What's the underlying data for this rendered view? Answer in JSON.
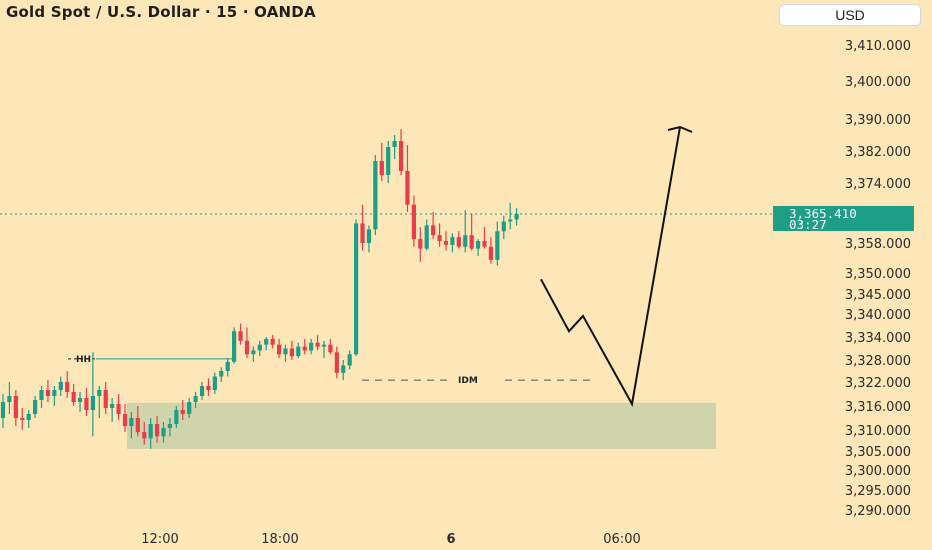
{
  "header": {
    "title": "Gold Spot / U.S. Dollar · 15 · OANDA",
    "currency_button": "USD"
  },
  "chart_data": {
    "type": "candlestick",
    "title": "Gold Spot / U.S. Dollar · 15 · OANDA",
    "y_ticks": [
      "3,410.000",
      "3,400.000",
      "3,390.000",
      "3,382.000",
      "3,374.000",
      "3,365.410",
      "3,358.000",
      "3,350.000",
      "3,345.000",
      "3,340.000",
      "3,334.000",
      "3,328.000",
      "3,322.000",
      "3,316.000",
      "3,310.000",
      "3,305.000",
      "3,300.000",
      "3,295.000",
      "3,290.000"
    ],
    "x_ticks": [
      "12:00",
      "18:00",
      "6",
      "06:00"
    ],
    "current_price": {
      "value": 3365.41,
      "label": "3,365.410",
      "countdown": "03:27"
    },
    "annotations": {
      "hh": "HH",
      "idm": "IDM"
    },
    "ohlc": [
      [
        3313.0,
        3319.0,
        3310.5,
        3317.0
      ],
      [
        3317.0,
        3322.0,
        3314.0,
        3318.5
      ],
      [
        3318.5,
        3320.0,
        3311.0,
        3313.0
      ],
      [
        3313.0,
        3315.5,
        3310.0,
        3312.5
      ],
      [
        3312.5,
        3315.0,
        3310.5,
        3314.0
      ],
      [
        3314.0,
        3318.5,
        3313.0,
        3317.5
      ],
      [
        3317.5,
        3321.0,
        3315.5,
        3320.0
      ],
      [
        3320.0,
        3322.5,
        3317.0,
        3318.5
      ],
      [
        3318.5,
        3321.0,
        3316.0,
        3320.0
      ],
      [
        3320.0,
        3323.5,
        3318.5,
        3322.0
      ],
      [
        3322.0,
        3325.0,
        3318.0,
        3319.5
      ],
      [
        3319.5,
        3321.5,
        3316.0,
        3317.0
      ],
      [
        3317.0,
        3319.5,
        3314.5,
        3318.0
      ],
      [
        3318.0,
        3320.5,
        3313.5,
        3315.0
      ],
      [
        3315.0,
        3330.0,
        3308.5,
        3318.5
      ],
      [
        3318.5,
        3321.0,
        3313.0,
        3320.0
      ],
      [
        3320.0,
        3322.0,
        3314.0,
        3315.5
      ],
      [
        3315.5,
        3318.0,
        3312.0,
        3316.5
      ],
      [
        3316.5,
        3319.0,
        3312.5,
        3314.0
      ],
      [
        3314.0,
        3316.5,
        3309.5,
        3311.0
      ],
      [
        3311.0,
        3314.5,
        3308.0,
        3313.0
      ],
      [
        3313.0,
        3316.0,
        3308.5,
        3309.5
      ],
      [
        3309.5,
        3312.0,
        3306.5,
        3308.0
      ],
      [
        3308.0,
        3313.0,
        3305.5,
        3311.5
      ],
      [
        3311.5,
        3313.5,
        3307.0,
        3308.5
      ],
      [
        3308.5,
        3312.0,
        3307.0,
        3310.5
      ],
      [
        3310.5,
        3313.0,
        3308.5,
        3311.5
      ],
      [
        3311.5,
        3316.0,
        3310.5,
        3315.0
      ],
      [
        3315.0,
        3317.5,
        3312.5,
        3314.0
      ],
      [
        3314.0,
        3318.0,
        3313.0,
        3317.0
      ],
      [
        3317.0,
        3319.5,
        3315.5,
        3318.5
      ],
      [
        3318.5,
        3322.0,
        3317.5,
        3321.0
      ],
      [
        3321.0,
        3323.0,
        3318.5,
        3320.0
      ],
      [
        3320.0,
        3324.5,
        3319.0,
        3323.5
      ],
      [
        3323.5,
        3326.0,
        3322.0,
        3325.0
      ],
      [
        3325.0,
        3328.5,
        3323.5,
        3327.5
      ],
      [
        3327.5,
        3336.5,
        3327.0,
        3335.5
      ],
      [
        3335.5,
        3337.5,
        3332.0,
        3333.0
      ],
      [
        3333.0,
        3336.5,
        3328.5,
        3329.5
      ],
      [
        3329.5,
        3331.5,
        3327.5,
        3330.5
      ],
      [
        3330.5,
        3333.0,
        3329.0,
        3332.0
      ],
      [
        3332.0,
        3334.0,
        3330.5,
        3333.5
      ],
      [
        3333.5,
        3334.5,
        3331.0,
        3332.0
      ],
      [
        3332.0,
        3333.5,
        3328.5,
        3329.5
      ],
      [
        3329.5,
        3332.0,
        3327.5,
        3331.0
      ],
      [
        3331.0,
        3333.0,
        3328.0,
        3329.0
      ],
      [
        3329.0,
        3332.5,
        3328.5,
        3331.5
      ],
      [
        3331.5,
        3333.5,
        3329.5,
        3330.5
      ],
      [
        3330.5,
        3333.5,
        3329.5,
        3332.5
      ],
      [
        3332.5,
        3334.5,
        3330.5,
        3331.5
      ],
      [
        3331.5,
        3333.0,
        3328.5,
        3332.0
      ],
      [
        3332.0,
        3333.5,
        3329.5,
        3330.0
      ],
      [
        3330.0,
        3331.5,
        3323.0,
        3324.5
      ],
      [
        3324.5,
        3328.0,
        3322.5,
        3326.5
      ],
      [
        3326.5,
        3330.5,
        3325.5,
        3329.5
      ],
      [
        3329.5,
        3364.0,
        3329.0,
        3363.0
      ],
      [
        3363.0,
        3368.0,
        3356.0,
        3358.0
      ],
      [
        3358.0,
        3362.5,
        3355.5,
        3361.5
      ],
      [
        3361.5,
        3381.0,
        3360.0,
        3379.5
      ],
      [
        3379.5,
        3384.0,
        3374.5,
        3376.0
      ],
      [
        3376.0,
        3384.5,
        3374.0,
        3383.0
      ],
      [
        3383.0,
        3386.0,
        3380.0,
        3384.5
      ],
      [
        3384.5,
        3387.5,
        3376.0,
        3377.0
      ],
      [
        3377.0,
        3383.5,
        3366.0,
        3368.0
      ],
      [
        3368.0,
        3370.5,
        3357.0,
        3359.0
      ],
      [
        3359.0,
        3362.0,
        3353.0,
        3356.5
      ],
      [
        3356.5,
        3364.0,
        3356.0,
        3362.5
      ],
      [
        3362.5,
        3366.0,
        3359.0,
        3360.0
      ],
      [
        3360.0,
        3363.0,
        3357.0,
        3358.5
      ],
      [
        3358.5,
        3361.0,
        3356.0,
        3357.5
      ],
      [
        3357.5,
        3360.5,
        3355.5,
        3359.5
      ],
      [
        3359.5,
        3361.0,
        3356.5,
        3357.0
      ],
      [
        3357.0,
        3366.5,
        3355.5,
        3360.0
      ],
      [
        3360.0,
        3365.5,
        3356.0,
        3356.5
      ],
      [
        3356.5,
        3359.0,
        3354.5,
        3358.5
      ],
      [
        3358.5,
        3362.0,
        3356.5,
        3357.0
      ],
      [
        3357.0,
        3359.5,
        3352.5,
        3353.5
      ],
      [
        3353.5,
        3363.5,
        3352.0,
        3361.0
      ],
      [
        3361.0,
        3365.0,
        3359.0,
        3363.5
      ],
      [
        3363.5,
        3368.5,
        3361.5,
        3364.0
      ],
      [
        3364.0,
        3367.0,
        3362.5,
        3365.4
      ]
    ],
    "hh_level": 3328.3,
    "idm_level": 3322.5,
    "zone": {
      "low": 3305.5,
      "high": 3316.8
    },
    "projection": [
      [
        3348.5
      ],
      [
        3335.5
      ],
      [
        3339.5
      ],
      [
        3316.5
      ],
      [
        3388.0
      ]
    ]
  },
  "colors": {
    "background": "#fde7b8",
    "bullish": "#1e9e86",
    "bearish": "#ea3b4a",
    "zone": "#cfd4ab",
    "price_tag": "#1e9e86",
    "text": "#2b2b2b"
  }
}
